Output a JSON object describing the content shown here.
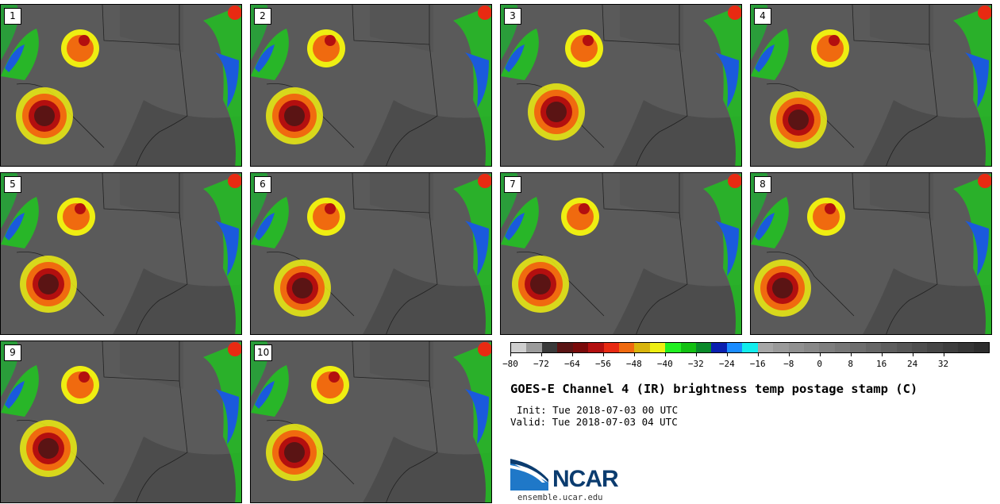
{
  "panels": [
    {
      "label": "1"
    },
    {
      "label": "2"
    },
    {
      "label": "3"
    },
    {
      "label": "4"
    },
    {
      "label": "5"
    },
    {
      "label": "6"
    },
    {
      "label": "7"
    },
    {
      "label": "8"
    },
    {
      "label": "9"
    },
    {
      "label": "10"
    }
  ],
  "colorbar": {
    "colors": [
      "#cfcfcf",
      "#9b9b9b",
      "#3a3a3a",
      "#5a1414",
      "#7a0a0a",
      "#b30f0f",
      "#e82a12",
      "#f06a0f",
      "#d8b40c",
      "#eeee12",
      "#22f022",
      "#12c012",
      "#0a8a2a",
      "#0a20b0",
      "#1a8cff",
      "#12ecec",
      "#a6a6a6",
      "#9a9a9a",
      "#909090",
      "#888888",
      "#7e7e7e",
      "#767676",
      "#6e6e6e",
      "#666666",
      "#5e5e5e",
      "#565656",
      "#4e4e4e",
      "#464646",
      "#3e3e3e",
      "#363636",
      "#2e2e2e"
    ],
    "tick_labels": [
      "−80",
      "−72",
      "−64",
      "−56",
      "−48",
      "−40",
      "−32",
      "−24",
      "−16",
      "−8",
      "0",
      "8",
      "16",
      "24",
      "32"
    ]
  },
  "title": "GOES-E Channel 4 (IR) brightness temp postage stamp (C)",
  "init": "Init: Tue 2018-07-03 00 UTC",
  "valid": "Valid: Tue 2018-07-03 04 UTC",
  "logo": {
    "text": "NCAR",
    "color": "#0b3c6f"
  },
  "website": "ensemble.ucar.edu"
}
